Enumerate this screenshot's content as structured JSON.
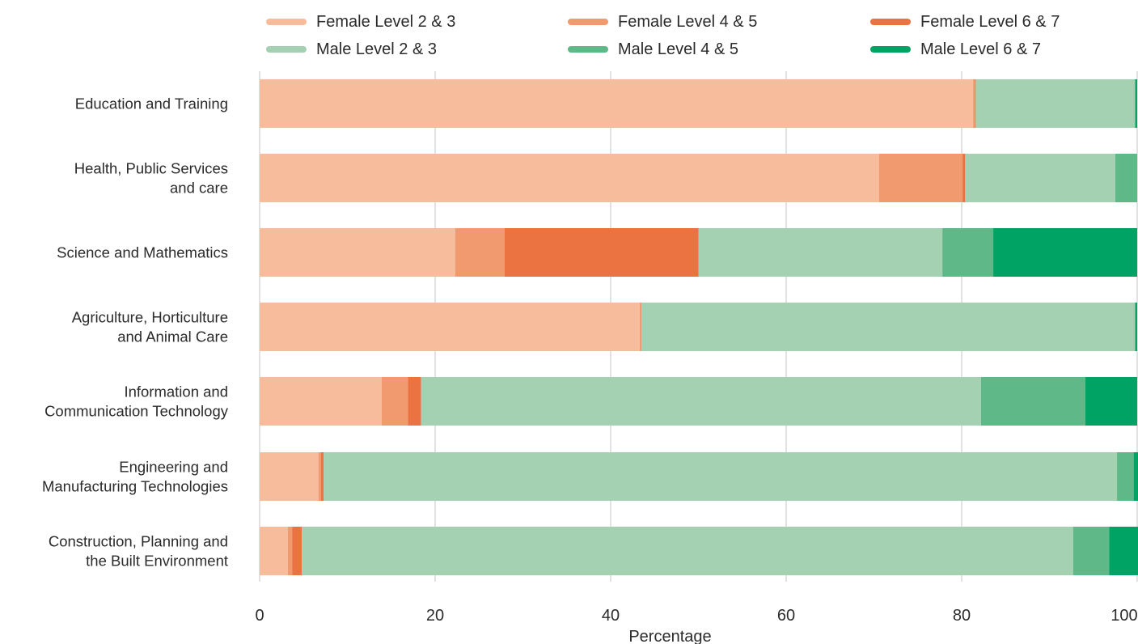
{
  "chart_data": {
    "type": "bar",
    "orientation": "horizontal",
    "stacked": true,
    "title": "",
    "xlabel": "Percentage",
    "ylabel": "",
    "xlim": [
      0,
      100
    ],
    "xticks": [
      0,
      20,
      40,
      60,
      80,
      100
    ],
    "grid": "vertical",
    "legend_position": "top",
    "categories": [
      "Education and Training",
      "Health, Public Services\nand care",
      "Science and Mathematics",
      "Agriculture, Horticulture\nand Animal Care",
      "Information and\nCommunication Technology",
      "Engineering and\nManufacturing Technologies",
      "Construction, Planning and\nthe Built Environment"
    ],
    "series": [
      {
        "name": "Female Level 2 & 3",
        "color": "#f7bc9c",
        "values": [
          81.3,
          70.6,
          22.3,
          43.3,
          13.9,
          6.7,
          3.2
        ]
      },
      {
        "name": "Female Level 4 & 5",
        "color": "#f19a6f",
        "values": [
          0.2,
          9.5,
          5.6,
          0.2,
          3.0,
          0.3,
          0.5
        ]
      },
      {
        "name": "Female Level 6 & 7",
        "color": "#eb7342",
        "values": [
          0.1,
          0.3,
          22.1,
          0.0,
          1.5,
          0.3,
          1.1
        ]
      },
      {
        "name": "Male Level 2 & 3",
        "color": "#a3d1b2",
        "values": [
          18.1,
          17.1,
          27.8,
          56.2,
          63.8,
          90.4,
          87.9
        ]
      },
      {
        "name": "Male Level 4 & 5",
        "color": "#5fb888",
        "values": [
          0.1,
          2.5,
          5.8,
          0.1,
          11.9,
          1.9,
          4.1
        ]
      },
      {
        "name": "Male Level 6 & 7",
        "color": "#00a363",
        "values": [
          0.2,
          0.0,
          16.4,
          0.2,
          5.9,
          0.9,
          3.7
        ]
      }
    ]
  }
}
